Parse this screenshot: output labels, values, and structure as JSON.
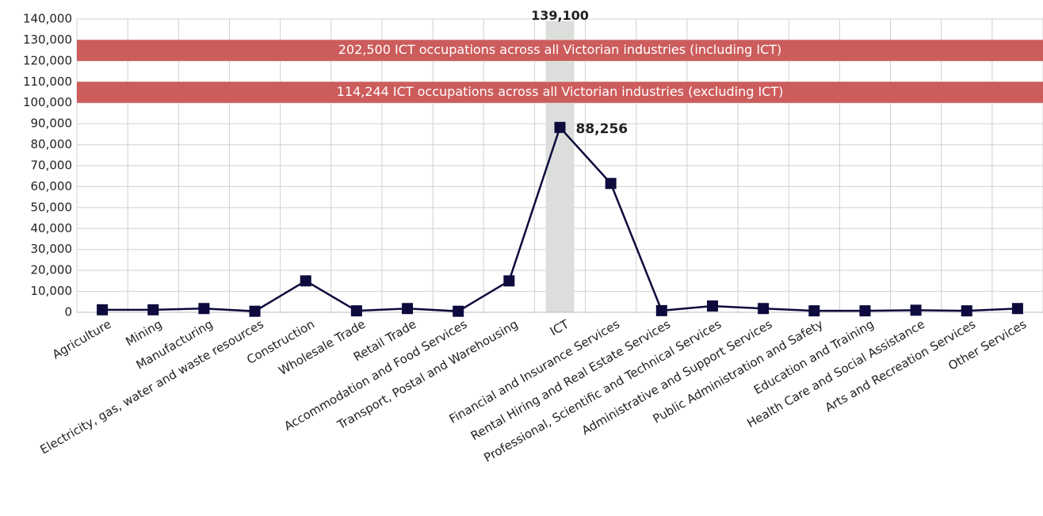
{
  "chart_data": {
    "type": "line",
    "categories": [
      "Agriculture",
      "Mining",
      "Manufacturing",
      "Electricity, gas, water and waste resources",
      "Construction",
      "Wholesale Trade",
      "Retail Trade",
      "Accommodation and Food Services",
      "Transport, Postal and Warehousing",
      "ICT",
      "Financial and Insurance Services",
      "Rental Hiring and Real Estate Services",
      "Professional, Scientific and Technical Services",
      "Administrative and Support Services",
      "Public Administration and Safety",
      "Education and Training",
      "Health Care and Social Assistance",
      "Arts and Recreation Services",
      "Other Services"
    ],
    "series": [
      {
        "color": "#0d0a3d",
        "values": [
          1200,
          1200,
          1800,
          500,
          15000,
          700,
          1800,
          500,
          15000,
          88256,
          61500,
          800,
          3000,
          1800,
          700,
          700,
          1000,
          700,
          1800
        ],
        "value_labels": [
          null,
          null,
          null,
          null,
          null,
          null,
          null,
          null,
          null,
          "88,256",
          null,
          null,
          null,
          null,
          null,
          null,
          null,
          null,
          null
        ]
      }
    ],
    "bar_series": {
      "color": "#dcdedb",
      "values": [
        null,
        null,
        null,
        null,
        null,
        null,
        null,
        null,
        null,
        139100,
        null,
        null,
        null,
        null,
        null,
        null,
        null,
        null,
        null
      ],
      "value_labels": [
        null,
        null,
        null,
        null,
        null,
        null,
        null,
        null,
        null,
        "139,100",
        null,
        null,
        null,
        null,
        null,
        null,
        null,
        null,
        null
      ]
    },
    "bands": [
      {
        "from": 120000,
        "to": 130000,
        "label": "202,500 ICT occupations across all Victorian industries (including ICT)",
        "color": "#cd5c5c"
      },
      {
        "from": 100000,
        "to": 110000,
        "label": "114,244 ICT occupations across all Victorian industries (excluding ICT)",
        "color": "#cd5c5c"
      }
    ],
    "ylim": [
      0,
      140000
    ],
    "yticks": [
      0,
      {
        "value": 10000,
        "label": "10,000"
      },
      {
        "value": 20000,
        "label": "20,000"
      },
      {
        "value": 30000,
        "label": "30,000"
      },
      {
        "value": 40000,
        "label": "40,000"
      },
      {
        "value": 50000,
        "label": "50,000"
      },
      {
        "value": 60000,
        "label": "60,000"
      },
      {
        "value": 70000,
        "label": "70,000"
      },
      {
        "value": 80000,
        "label": "80,000"
      },
      {
        "value": 90000,
        "label": "90,000"
      },
      {
        "value": 100000,
        "label": "100,000"
      },
      {
        "value": 110000,
        "label": "110,000"
      },
      {
        "value": 120000,
        "label": "120,000"
      },
      {
        "value": 130000,
        "label": "130,000"
      },
      {
        "value": 140000,
        "label": "140,000"
      }
    ],
    "grid": true
  }
}
